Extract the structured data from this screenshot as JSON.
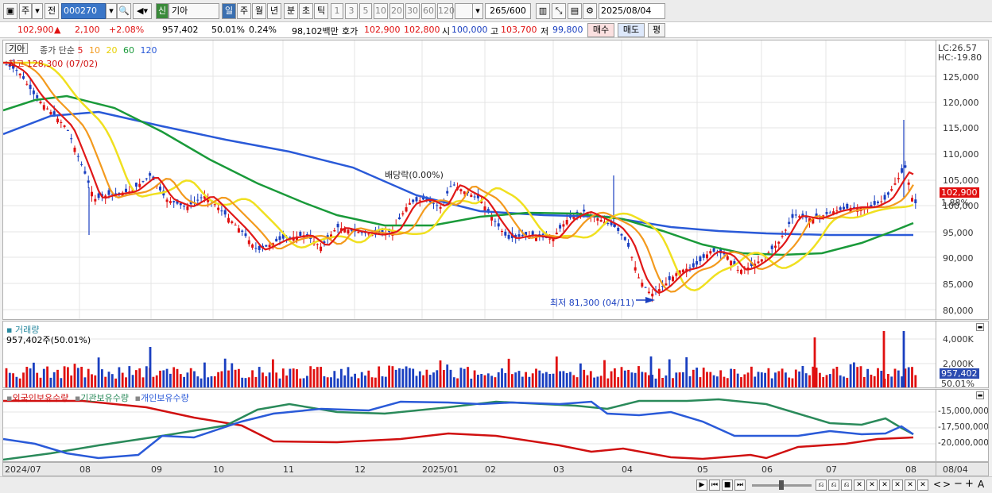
{
  "toolbar": {
    "market": "주",
    "jeon": "전",
    "code": "000270",
    "shin": "신",
    "name": "기아",
    "period_tabs": [
      "일",
      "주",
      "월",
      "년",
      "분",
      "초",
      "틱"
    ],
    "interval_tabs": [
      "1",
      "3",
      "5",
      "10",
      "20",
      "30",
      "60",
      "120"
    ],
    "count": "265",
    "count_max": "/600",
    "date": "2025/08/04"
  },
  "quote": {
    "price": "102,900",
    "arrow": "▲",
    "change": "2,100",
    "change_pct": "+2.08%",
    "volume": "957,402",
    "vol_ratio": "50.01%",
    "turnover_pct": "0.24%",
    "amount": "98,102백만",
    "bid_label": "호가",
    "bid": "102,900",
    "ask": "102,800",
    "open_label": "시",
    "open": "100,000",
    "high_label": "고",
    "high": "103,700",
    "low_label": "저",
    "low": "99,800",
    "buy_btn": "매수",
    "sell_btn": "매도",
    "eval_btn": "평"
  },
  "price_pane": {
    "name_tag": "기아",
    "ma_title": "종가 단순",
    "ma_periods": [
      "5",
      "10",
      "20",
      "60",
      "120"
    ],
    "ma_colors": [
      "#e01818",
      "#f39a1e",
      "#f0e020",
      "#1a9a3a",
      "#2a5ad8"
    ],
    "high_note": "최고 128,300 (07/02)",
    "dividend_note": "배당락(0.00%)",
    "low_note": "최저 81,300 (04/11)",
    "lc": "LC:26.57",
    "hc": "HC:-19.80",
    "y_labels": [
      "125,000",
      "120,000",
      "115,000",
      "110,000",
      "105,000",
      "100,000",
      "95,000",
      "90,000",
      "85,000",
      "80,000"
    ],
    "current_tag": "102,900",
    "current_pct": "1.88%"
  },
  "volume_pane": {
    "title": "거래량",
    "value": "957,402주(50.01%)",
    "y_labels": [
      "4,000K",
      "2,000K"
    ],
    "current_tag": "957,402",
    "current_pct": "50.01%"
  },
  "holder_pane": {
    "series": [
      {
        "name": "외국인보유수량",
        "color": "#d01010"
      },
      {
        "name": "기관보유수량",
        "color": "#2a8a5a"
      },
      {
        "name": "개인보유수량",
        "color": "#2a5ad8"
      }
    ],
    "y_labels": [
      "-15,000,000",
      "-17,500,000",
      "-20,000,000"
    ]
  },
  "x_axis": {
    "labels": [
      "2024/07",
      "08",
      "09",
      "10",
      "11",
      "12",
      "2025/01",
      "02",
      "03",
      "04",
      "05",
      "06",
      "07",
      "08"
    ],
    "right_label": "08/04"
  }
}
